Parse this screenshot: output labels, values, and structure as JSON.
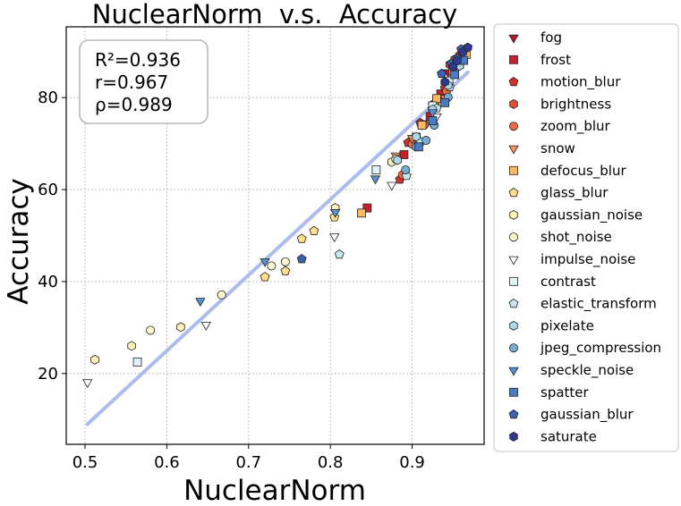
{
  "chart_data": {
    "type": "scatter",
    "title": "NuclearNorm  v.s.  Accuracy",
    "xlabel": "NuclearNorm",
    "ylabel": "Accuracy",
    "xlim": [
      0.477,
      0.988
    ],
    "ylim": [
      4.6,
      95.4
    ],
    "xticks": [
      0.5,
      0.6,
      0.7,
      0.8,
      0.9
    ],
    "xtick_labels": [
      "0.5",
      "0.6",
      "0.7",
      "0.8",
      "0.9"
    ],
    "yticks": [
      20,
      40,
      60,
      80
    ],
    "ytick_labels": [
      "20",
      "40",
      "60",
      "80"
    ],
    "grid": true,
    "legend_position": "outside-right",
    "stats": [
      "R²=0.936",
      "r=0.967",
      "ρ=0.989"
    ],
    "fit_line": {
      "x": [
        0.503,
        0.968
      ],
      "y": [
        9.0,
        85.5
      ],
      "color": "#a8b9ec"
    },
    "series": [
      {
        "name": "fog",
        "marker": "triangle-down",
        "color": "#b2182b",
        "x": [
          0.944,
          0.952,
          0.958,
          0.964,
          0.968
        ],
        "y": [
          85.5,
          87.5,
          88.6,
          89.6,
          90.6
        ]
      },
      {
        "name": "frost",
        "marker": "square",
        "color": "#c8202c",
        "x": [
          0.845,
          0.89,
          0.905,
          0.922,
          0.935
        ],
        "y": [
          56.0,
          67.6,
          71.4,
          75.9,
          80.8
        ]
      },
      {
        "name": "motion_blur",
        "marker": "pentagon",
        "color": "#d6312a",
        "x": [
          0.885,
          0.895,
          0.91,
          0.925,
          0.94
        ],
        "y": [
          62.2,
          70.2,
          74.5,
          78.5,
          82.1
        ]
      },
      {
        "name": "brightness",
        "marker": "hexagon",
        "color": "#e34f2f",
        "x": [
          0.946,
          0.952,
          0.958,
          0.962,
          0.966
        ],
        "y": [
          87.2,
          88.3,
          89.2,
          89.9,
          90.5
        ]
      },
      {
        "name": "zoom_blur",
        "marker": "circle",
        "color": "#ea6b45",
        "x": [
          0.888,
          0.9,
          0.915,
          0.928,
          0.942
        ],
        "y": [
          63.2,
          69.9,
          74.1,
          78.5,
          81.4
        ]
      },
      {
        "name": "snow",
        "marker": "triangle-down",
        "color": "#f7945a",
        "x": [
          0.88,
          0.9,
          0.912,
          0.925,
          0.94
        ],
        "y": [
          67.4,
          71.2,
          74.1,
          77.3,
          79.9
        ]
      },
      {
        "name": "defocus_blur",
        "marker": "square",
        "color": "#fdb863",
        "x": [
          0.838,
          0.912,
          0.93,
          0.95,
          0.966
        ],
        "y": [
          54.9,
          74.0,
          79.8,
          85.8,
          89.4
        ]
      },
      {
        "name": "glass_blur",
        "marker": "pentagon",
        "color": "#fee08b",
        "x": [
          0.72,
          0.745,
          0.765,
          0.78,
          0.805
        ],
        "y": [
          41.0,
          42.3,
          49.3,
          51.0,
          54.0
        ]
      },
      {
        "name": "gaussian_noise",
        "marker": "hexagon",
        "color": "#fff2b5",
        "x": [
          0.512,
          0.557,
          0.617,
          0.806,
          0.875
        ],
        "y": [
          23.0,
          26.0,
          30.1,
          56.0,
          66.0
        ]
      },
      {
        "name": "shot_noise",
        "marker": "circle",
        "color": "#fffbd0",
        "x": [
          0.58,
          0.667,
          0.728,
          0.745,
          0.88
        ],
        "y": [
          29.4,
          37.1,
          43.4,
          44.3,
          66.6
        ]
      },
      {
        "name": "impulse_noise",
        "marker": "triangle-down",
        "color": "#ffffff",
        "x": [
          0.503,
          0.648,
          0.805,
          0.875,
          0.93
        ],
        "y": [
          18.1,
          30.6,
          49.8,
          61.0,
          75.9
        ]
      },
      {
        "name": "contrast",
        "marker": "square",
        "color": "#e0f3f8",
        "x": [
          0.564,
          0.856,
          0.925,
          0.945,
          0.958
        ],
        "y": [
          22.5,
          64.3,
          78.2,
          83.6,
          87.3
        ]
      },
      {
        "name": "elastic_transform",
        "marker": "pentagon",
        "color": "#c7e6ef",
        "x": [
          0.811,
          0.893,
          0.91,
          0.93,
          0.946
        ],
        "y": [
          45.9,
          63.0,
          70.4,
          77.7,
          82.3
        ]
      },
      {
        "name": "pixelate",
        "marker": "hexagon",
        "color": "#abd9e9",
        "x": [
          0.882,
          0.905,
          0.925,
          0.944,
          0.958
        ],
        "y": [
          66.4,
          71.5,
          77.4,
          82.7,
          86.9
        ]
      },
      {
        "name": "jpeg_compression",
        "marker": "circle",
        "color": "#74add1",
        "x": [
          0.892,
          0.905,
          0.917,
          0.927,
          0.944
        ],
        "y": [
          64.3,
          69.3,
          70.7,
          74.0,
          80.1
        ]
      },
      {
        "name": "speckle_noise",
        "marker": "triangle-down",
        "color": "#5b8fcf",
        "x": [
          0.641,
          0.72,
          0.806,
          0.855,
          0.925
        ],
        "y": [
          35.8,
          44.4,
          55.1,
          62.4,
          76.8
        ]
      },
      {
        "name": "spatter",
        "marker": "square",
        "color": "#4a7bc4",
        "x": [
          0.908,
          0.925,
          0.94,
          0.952,
          0.963
        ],
        "y": [
          69.3,
          75.0,
          78.9,
          85.0,
          88.1
        ]
      },
      {
        "name": "gaussian_blur",
        "marker": "pentagon",
        "color": "#3f5fb3",
        "x": [
          0.765,
          0.936,
          0.948,
          0.955,
          0.96
        ],
        "y": [
          44.9,
          85.2,
          87.4,
          88.5,
          90.5
        ]
      },
      {
        "name": "saturate",
        "marker": "hexagon",
        "color": "#2e3b92",
        "x": [
          0.94,
          0.95,
          0.955,
          0.962,
          0.968
        ],
        "y": [
          83.4,
          86.7,
          88.0,
          89.9,
          90.9
        ]
      }
    ]
  }
}
